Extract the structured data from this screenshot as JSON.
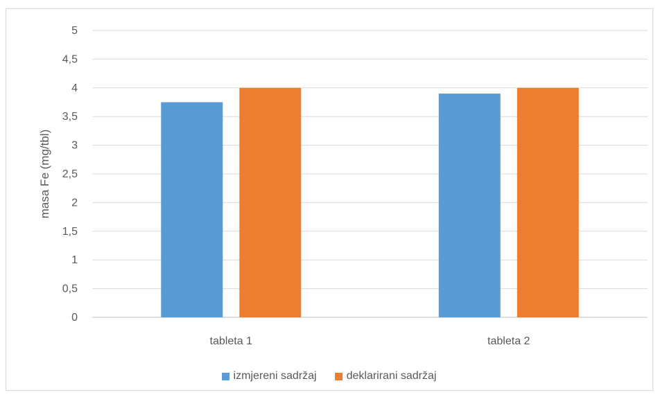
{
  "chart_data": {
    "type": "bar",
    "categories": [
      "tableta 1",
      "tableta 2"
    ],
    "series": [
      {
        "name": "izmjereni sadržaj",
        "values": [
          3.75,
          3.9
        ],
        "color": "#5b9bd5"
      },
      {
        "name": "deklarirani sadržaj",
        "values": [
          4,
          4
        ],
        "color": "#ed7d31"
      }
    ],
    "ylabel": "masa Fe (mg/tbl)",
    "xlabel": "",
    "ylim": [
      0,
      5
    ],
    "yticks": [
      "0",
      "0,5",
      "1",
      "1,5",
      "2",
      "2,5",
      "3",
      "3,5",
      "4",
      "4,5",
      "5"
    ],
    "grid": true,
    "legend_position": "bottom",
    "gridline_color": "#d9d9d9"
  }
}
